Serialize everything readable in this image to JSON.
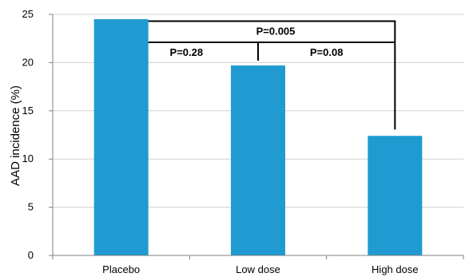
{
  "chart_data": {
    "type": "bar",
    "categories": [
      "Placebo",
      "Low dose",
      "High dose"
    ],
    "values": [
      24.5,
      19.7,
      12.4
    ],
    "title": "",
    "xlabel": "",
    "ylabel": "AAD incidence (%)",
    "ylim": [
      0,
      25
    ],
    "yticks": [
      0,
      5,
      10,
      15,
      20,
      25
    ],
    "grid": true,
    "legend": "none",
    "bar_color": "#1f9bd1",
    "annotations": [
      {
        "from": "Placebo",
        "to": "High dose",
        "label": "P=0.005"
      },
      {
        "from": "Placebo",
        "to": "Low dose",
        "label": "P=0.28"
      },
      {
        "from": "Low dose",
        "to": "High dose",
        "label": "P=0.08"
      }
    ]
  }
}
